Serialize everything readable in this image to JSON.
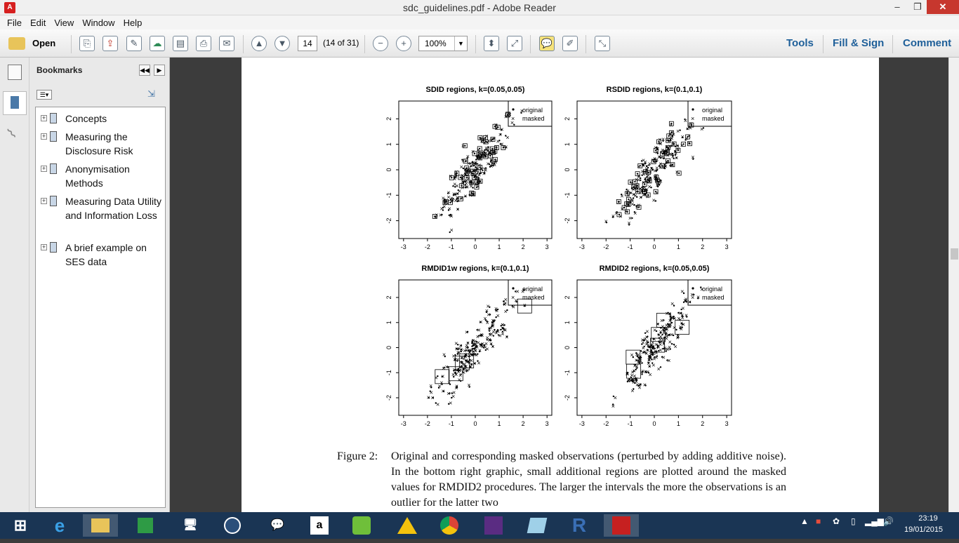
{
  "window": {
    "title": "sdc_guidelines.pdf - Adobe Reader",
    "minimize": "–",
    "maximize": "❐",
    "close": "✕"
  },
  "menu": [
    "File",
    "Edit",
    "View",
    "Window",
    "Help"
  ],
  "toolbar": {
    "open_label": "Open",
    "page_number": "14",
    "page_count": "(14 of 31)",
    "zoom": "100%",
    "tools_label": "Tools",
    "fill_sign_label": "Fill & Sign",
    "comment_label": "Comment"
  },
  "bookmarks": {
    "title": "Bookmarks",
    "items": [
      {
        "label": "Concepts"
      },
      {
        "label": "Measuring the Disclosure Risk"
      },
      {
        "label": "Anonymisation Methods"
      },
      {
        "label": "Measuring Data Utility and Information Loss"
      },
      {
        "label": "A brief example on SES data"
      }
    ]
  },
  "legend": {
    "original": "original",
    "masked": "masked"
  },
  "chart_data": [
    {
      "type": "scatter",
      "title": "SDID regions, k=(0.05,0.05)",
      "xticks": [
        "-3",
        "-2",
        "-1",
        "0",
        "1",
        "2",
        "3"
      ],
      "yticks": [
        "-2",
        "-1",
        "0",
        "1",
        "2"
      ],
      "xlim": [
        -3.2,
        3.2
      ],
      "ylim": [
        -2.7,
        2.7
      ],
      "legend": [
        "original",
        "masked"
      ],
      "legend_position": "top-right"
    },
    {
      "type": "scatter",
      "title": "RSDID regions, k=(0.1,0.1)",
      "xticks": [
        "-3",
        "-2",
        "-1",
        "0",
        "1",
        "2",
        "3"
      ],
      "yticks": [
        "-2",
        "-1",
        "0",
        "1",
        "2"
      ],
      "xlim": [
        -3.2,
        3.2
      ],
      "ylim": [
        -2.7,
        2.7
      ],
      "legend": [
        "original",
        "masked"
      ],
      "legend_position": "top-right"
    },
    {
      "type": "scatter",
      "title": "RMDID1w regions, k=(0.1,0.1)",
      "xticks": [
        "-3",
        "-2",
        "-1",
        "0",
        "1",
        "2",
        "3"
      ],
      "yticks": [
        "-2",
        "-1",
        "0",
        "1",
        "2"
      ],
      "xlim": [
        -3.2,
        3.2
      ],
      "ylim": [
        -2.7,
        2.7
      ],
      "legend": [
        "original",
        "masked"
      ],
      "legend_position": "top-right"
    },
    {
      "type": "scatter",
      "title": "RMDID2 regions, k=(0.05,0.05)",
      "xticks": [
        "-3",
        "-2",
        "-1",
        "0",
        "1",
        "2",
        "3"
      ],
      "yticks": [
        "-2",
        "-1",
        "0",
        "1",
        "2"
      ],
      "xlim": [
        -3.2,
        3.2
      ],
      "ylim": [
        -2.7,
        2.7
      ],
      "legend": [
        "original",
        "masked"
      ],
      "legend_position": "top-right"
    }
  ],
  "caption": {
    "label": "Figure 2:",
    "text": "Original and corresponding masked observations (perturbed by adding additive noise). In the bottom right graphic, small additional regions are plotted around the masked values for RMDID2 procedures. The larger the intervals the more the observations is an outlier for the latter two"
  },
  "tray": {
    "time": "23:19",
    "date": "19/01/2015"
  }
}
